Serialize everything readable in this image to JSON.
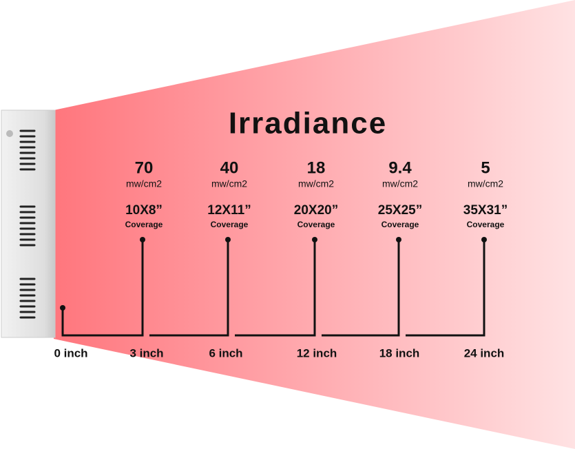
{
  "title": "Irradiance",
  "columns": [
    {
      "irradiance": "70",
      "unit": "mw/cm2",
      "coverage": "10X8”",
      "coverage_label": "Coverage"
    },
    {
      "irradiance": "40",
      "unit": "mw/cm2",
      "coverage": "12X11”",
      "coverage_label": "Coverage"
    },
    {
      "irradiance": "18",
      "unit": "mw/cm2",
      "coverage": "20X20”",
      "coverage_label": "Coverage"
    },
    {
      "irradiance": "9.4",
      "unit": "mw/cm2",
      "coverage": "25X25”",
      "coverage_label": "Coverage"
    },
    {
      "irradiance": "5",
      "unit": "mw/cm2",
      "coverage": "35X31”",
      "coverage_label": "Coverage"
    }
  ],
  "distances": [
    "0 inch",
    "3 inch",
    "6 inch",
    "12 inch",
    "18 inch",
    "24 inch"
  ]
}
